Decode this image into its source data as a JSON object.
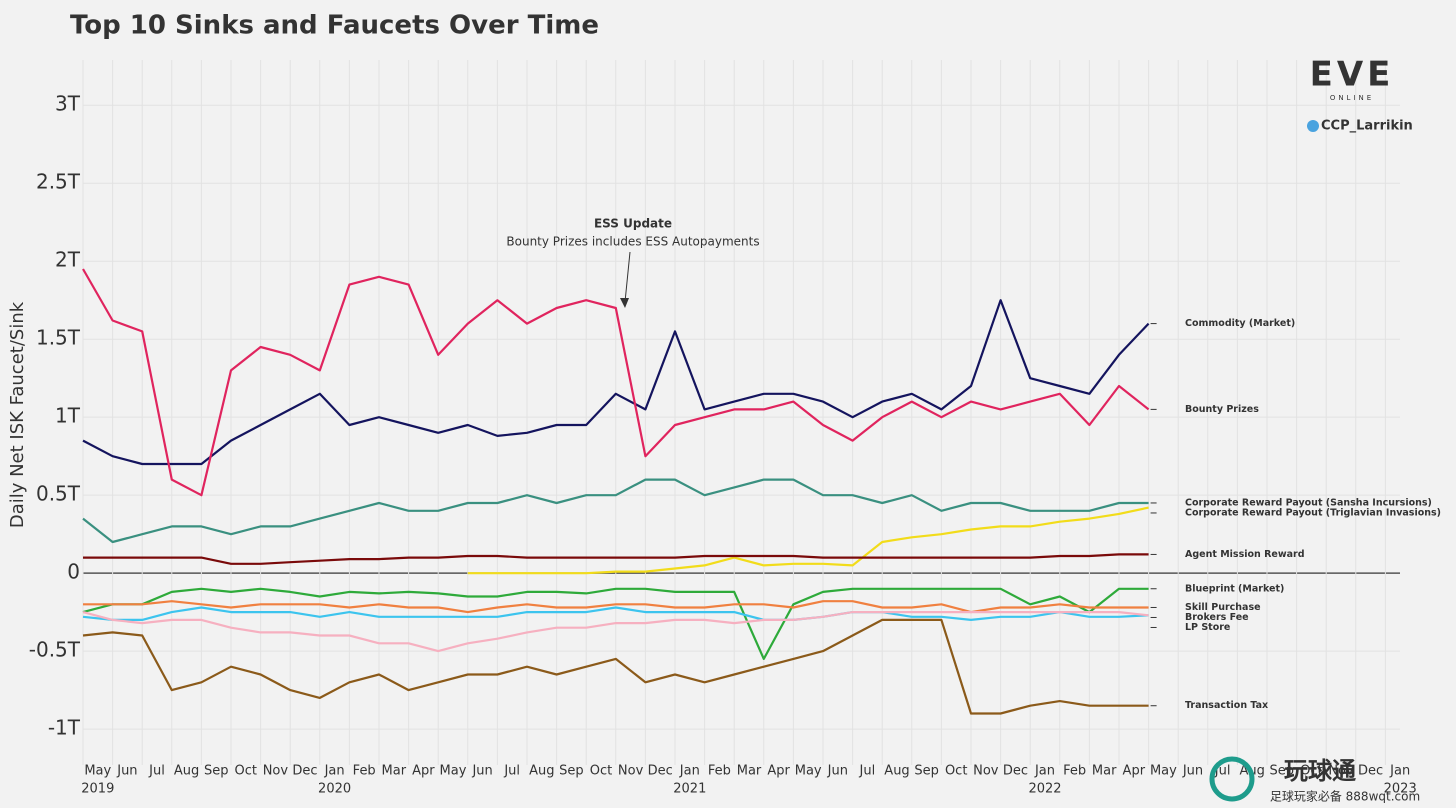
{
  "chart_data": {
    "type": "line",
    "title": "Top 10 Sinks and Faucets Over Time",
    "y_label": "Daily Net ISK Faucet/Sink",
    "annotation": {
      "title": "ESS Update",
      "text": "Bounty Prizes includes ESS Autopayments"
    },
    "x": [
      "2019-05",
      "2019-06",
      "2019-07",
      "2019-08",
      "2019-09",
      "2019-10",
      "2019-11",
      "2019-12",
      "2020-01",
      "2020-02",
      "2020-03",
      "2020-04",
      "2020-05",
      "2020-06",
      "2020-07",
      "2020-08",
      "2020-09",
      "2020-10",
      "2020-11",
      "2020-12",
      "2021-01",
      "2021-02",
      "2021-03",
      "2021-04",
      "2021-05",
      "2021-06",
      "2021-07",
      "2021-08",
      "2021-09",
      "2021-10",
      "2021-11",
      "2021-12",
      "2022-01",
      "2022-02",
      "2022-03",
      "2022-04",
      "2022-05"
    ],
    "xlim": [
      "2019-05",
      "2023-02"
    ],
    "xticks": [
      {
        "value": "2019-05",
        "label": "May"
      },
      {
        "value": "2019-06",
        "label": "Jun"
      },
      {
        "value": "2019-07",
        "label": "Jul"
      },
      {
        "value": "2019-08",
        "label": "Aug"
      },
      {
        "value": "2019-09",
        "label": "Sep"
      },
      {
        "value": "2019-10",
        "label": "Oct"
      },
      {
        "value": "2019-11",
        "label": "Nov"
      },
      {
        "value": "2019-12",
        "label": "Dec"
      },
      {
        "value": "2020-01",
        "label": "Jan"
      },
      {
        "value": "2020-02",
        "label": "Feb"
      },
      {
        "value": "2020-03",
        "label": "Mar"
      },
      {
        "value": "2020-04",
        "label": "Apr"
      },
      {
        "value": "2020-05",
        "label": "May"
      },
      {
        "value": "2020-06",
        "label": "Jun"
      },
      {
        "value": "2020-07",
        "label": "Jul"
      },
      {
        "value": "2020-08",
        "label": "Aug"
      },
      {
        "value": "2020-09",
        "label": "Sep"
      },
      {
        "value": "2020-10",
        "label": "Oct"
      },
      {
        "value": "2020-11",
        "label": "Nov"
      },
      {
        "value": "2020-12",
        "label": "Dec"
      },
      {
        "value": "2021-01",
        "label": "Jan"
      },
      {
        "value": "2021-02",
        "label": "Feb"
      },
      {
        "value": "2021-03",
        "label": "Mar"
      },
      {
        "value": "2021-04",
        "label": "Apr"
      },
      {
        "value": "2021-05",
        "label": "May"
      },
      {
        "value": "2021-06",
        "label": "Jun"
      },
      {
        "value": "2021-07",
        "label": "Jul"
      },
      {
        "value": "2021-08",
        "label": "Aug"
      },
      {
        "value": "2021-09",
        "label": "Sep"
      },
      {
        "value": "2021-10",
        "label": "Oct"
      },
      {
        "value": "2021-11",
        "label": "Nov"
      },
      {
        "value": "2021-12",
        "label": "Dec"
      },
      {
        "value": "2022-01",
        "label": "Jan"
      },
      {
        "value": "2022-02",
        "label": "Feb"
      },
      {
        "value": "2022-03",
        "label": "Mar"
      },
      {
        "value": "2022-04",
        "label": "Apr"
      },
      {
        "value": "2022-05",
        "label": "May"
      },
      {
        "value": "2022-06",
        "label": "Jun"
      },
      {
        "value": "2022-07",
        "label": "Jul"
      },
      {
        "value": "2022-08",
        "label": "Aug"
      },
      {
        "value": "2022-09",
        "label": "Sep"
      },
      {
        "value": "2022-10",
        "label": "Oct"
      },
      {
        "value": "2022-11",
        "label": "Nov"
      },
      {
        "value": "2022-12",
        "label": "Dec"
      },
      {
        "value": "2023-01",
        "label": "Jan"
      }
    ],
    "year_ticks": [
      {
        "value": "2019-05",
        "label": "2019"
      },
      {
        "value": "2020-01",
        "label": "2020"
      },
      {
        "value": "2021-01",
        "label": "2021"
      },
      {
        "value": "2022-01",
        "label": "2022"
      },
      {
        "value": "2023-01",
        "label": "2023"
      }
    ],
    "ylim": [
      -1.23,
      3.29
    ],
    "yticks": [
      {
        "value": -1,
        "label": "-1T"
      },
      {
        "value": -0.5,
        "label": "-0.5T"
      },
      0,
      {
        "value": 0.5,
        "label": "0.5T"
      },
      {
        "value": 1,
        "label": "1T"
      },
      {
        "value": 1.5,
        "label": "1.5T"
      },
      {
        "value": 2,
        "label": "2T"
      },
      {
        "value": 2.5,
        "label": "2.5T"
      },
      {
        "value": 3,
        "label": "3T"
      }
    ],
    "grid": true,
    "series": [
      {
        "name": "Commodity (Market)",
        "color": "#14145e",
        "values": [
          0.85,
          0.75,
          0.7,
          0.7,
          0.7,
          0.85,
          0.95,
          1.05,
          1.15,
          0.95,
          1.0,
          0.95,
          0.9,
          0.95,
          0.88,
          0.9,
          0.95,
          0.95,
          1.15,
          1.05,
          1.55,
          1.05,
          1.1,
          1.15,
          1.15,
          1.1,
          1.0,
          1.1,
          1.15,
          1.05,
          1.2,
          1.75,
          1.25,
          1.2,
          1.15,
          1.4,
          1.6
        ]
      },
      {
        "name": "Bounty Prizes",
        "color": "#e0245e",
        "values": [
          1.95,
          1.62,
          1.55,
          0.6,
          0.5,
          1.3,
          1.45,
          1.4,
          1.3,
          1.85,
          1.9,
          1.85,
          1.4,
          1.6,
          1.75,
          1.6,
          1.7,
          1.75,
          1.7,
          0.75,
          0.95,
          1.0,
          1.05,
          1.05,
          1.1,
          0.95,
          0.85,
          1.0,
          1.1,
          1.0,
          1.1,
          1.05,
          1.1,
          1.15,
          0.95,
          1.2,
          1.05
        ]
      },
      {
        "name": "Corporate Reward Payout (Sansha Incursions)",
        "color": "#3a9080",
        "values": [
          0.35,
          0.2,
          0.25,
          0.3,
          0.3,
          0.25,
          0.3,
          0.3,
          0.35,
          0.4,
          0.45,
          0.4,
          0.4,
          0.45,
          0.45,
          0.5,
          0.45,
          0.5,
          0.5,
          0.6,
          0.6,
          0.5,
          0.55,
          0.6,
          0.6,
          0.5,
          0.5,
          0.45,
          0.5,
          0.4,
          0.45,
          0.45,
          0.4,
          0.4,
          0.4,
          0.45,
          0.45
        ]
      },
      {
        "name": "Corporate Reward Payout (Triglavian Invasions)",
        "color": "#f2dc1a",
        "values": [
          null,
          null,
          null,
          null,
          null,
          null,
          null,
          null,
          null,
          null,
          null,
          null,
          null,
          0,
          0,
          0,
          0,
          0,
          0.01,
          0.01,
          0.03,
          0.05,
          0.1,
          0.05,
          0.06,
          0.06,
          0.05,
          0.2,
          0.23,
          0.25,
          0.28,
          0.3,
          0.3,
          0.33,
          0.35,
          0.38,
          0.42
        ]
      },
      {
        "name": "Agent Mission Reward",
        "color": "#7a0a0a",
        "values": [
          0.1,
          0.1,
          0.1,
          0.1,
          0.1,
          0.06,
          0.06,
          0.07,
          0.08,
          0.09,
          0.09,
          0.1,
          0.1,
          0.11,
          0.11,
          0.1,
          0.1,
          0.1,
          0.1,
          0.1,
          0.1,
          0.11,
          0.11,
          0.11,
          0.11,
          0.1,
          0.1,
          0.1,
          0.1,
          0.1,
          0.1,
          0.1,
          0.1,
          0.11,
          0.11,
          0.12,
          0.12
        ]
      },
      {
        "name": "Blueprint (Market)",
        "color": "#2eaa3a",
        "values": [
          -0.25,
          -0.2,
          -0.2,
          -0.12,
          -0.1,
          -0.12,
          -0.1,
          -0.12,
          -0.15,
          -0.12,
          -0.13,
          -0.12,
          -0.13,
          -0.15,
          -0.15,
          -0.12,
          -0.12,
          -0.13,
          -0.1,
          -0.1,
          -0.12,
          -0.12,
          -0.12,
          -0.55,
          -0.2,
          -0.12,
          -0.1,
          -0.1,
          -0.1,
          -0.1,
          -0.1,
          -0.1,
          -0.2,
          -0.15,
          -0.25,
          -0.1,
          -0.1
        ]
      },
      {
        "name": "Skill Purchase",
        "color": "#f08040",
        "values": [
          -0.2,
          -0.2,
          -0.2,
          -0.18,
          -0.2,
          -0.22,
          -0.2,
          -0.2,
          -0.2,
          -0.22,
          -0.2,
          -0.22,
          -0.22,
          -0.25,
          -0.22,
          -0.2,
          -0.22,
          -0.22,
          -0.2,
          -0.2,
          -0.22,
          -0.22,
          -0.2,
          -0.2,
          -0.22,
          -0.18,
          -0.18,
          -0.22,
          -0.22,
          -0.2,
          -0.25,
          -0.22,
          -0.22,
          -0.2,
          -0.22,
          -0.22,
          -0.22
        ]
      },
      {
        "name": "Brokers Fee",
        "color": "#3cc4ee",
        "values": [
          -0.28,
          -0.3,
          -0.3,
          -0.25,
          -0.22,
          -0.25,
          -0.25,
          -0.25,
          -0.28,
          -0.25,
          -0.28,
          -0.28,
          -0.28,
          -0.28,
          -0.28,
          -0.25,
          -0.25,
          -0.25,
          -0.22,
          -0.25,
          -0.25,
          -0.25,
          -0.25,
          -0.3,
          -0.3,
          -0.28,
          -0.25,
          -0.25,
          -0.28,
          -0.28,
          -0.3,
          -0.28,
          -0.28,
          -0.25,
          -0.28,
          -0.28,
          -0.27
        ]
      },
      {
        "name": "LP Store",
        "color": "#f6b0c0",
        "values": [
          -0.25,
          -0.3,
          -0.32,
          -0.3,
          -0.3,
          -0.35,
          -0.38,
          -0.38,
          -0.4,
          -0.4,
          -0.45,
          -0.45,
          -0.5,
          -0.45,
          -0.42,
          -0.38,
          -0.35,
          -0.35,
          -0.32,
          -0.32,
          -0.3,
          -0.3,
          -0.32,
          -0.3,
          -0.3,
          -0.28,
          -0.25,
          -0.25,
          -0.25,
          -0.25,
          -0.25,
          -0.25,
          -0.25,
          -0.25,
          -0.25,
          -0.25,
          -0.27
        ]
      },
      {
        "name": "Transaction Tax",
        "color": "#8b5a1a",
        "values": [
          -0.4,
          -0.38,
          -0.4,
          -0.75,
          -0.7,
          -0.6,
          -0.65,
          -0.75,
          -0.8,
          -0.7,
          -0.65,
          -0.75,
          -0.7,
          -0.65,
          -0.65,
          -0.6,
          -0.65,
          -0.6,
          -0.55,
          -0.7,
          -0.65,
          -0.7,
          -0.65,
          -0.6,
          -0.55,
          -0.5,
          -0.4,
          -0.3,
          -0.3,
          -0.3,
          -0.9,
          -0.9,
          -0.85,
          -0.82,
          -0.85,
          -0.85,
          -0.85
        ]
      }
    ]
  },
  "branding": {
    "logo": "EVE",
    "logo_sub": "ONLINE",
    "handle": "CCP_Larrikin"
  },
  "watermark": {
    "name": "玩球通",
    "tagline": "足球玩家必备 888wqt.com"
  }
}
